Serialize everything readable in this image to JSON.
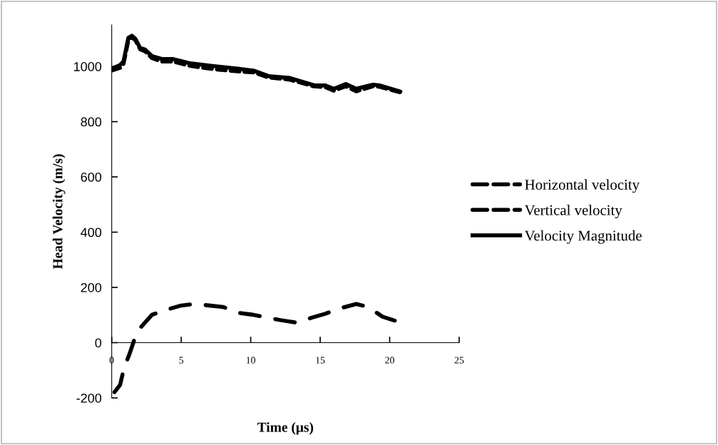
{
  "chart_data": {
    "type": "line",
    "xlabel": "Time (μs)",
    "ylabel": "Head Velocity (m/s)",
    "xlim": [
      0,
      25
    ],
    "xticks": [
      0,
      5,
      10,
      15,
      20,
      25
    ],
    "ylim": [
      -200,
      1150
    ],
    "yticks": [
      -200,
      0,
      200,
      400,
      600,
      800,
      1000
    ],
    "grid": false,
    "legend": "right",
    "marker": "none",
    "series": [
      {
        "name": "Horizontal velocity",
        "color": "#000000",
        "line_style": "dotted",
        "x": [
          0,
          0.6,
          0.85,
          1.2,
          1.45,
          1.7,
          2.05,
          2.4,
          2.9,
          3.6,
          4.36,
          5.64,
          7.35,
          9.06,
          10.26,
          11.28,
          12.82,
          14.53,
          15.38,
          15.98,
          16.84,
          17.6,
          18.8,
          19.3,
          20.77
        ],
        "values": [
          985,
          995,
          1010,
          1095,
          1105,
          1095,
          1062,
          1055,
          1030,
          1018,
          1018,
          1002,
          990,
          982,
          978,
          960,
          952,
          928,
          925,
          912,
          928,
          910,
          928,
          926,
          906
        ]
      },
      {
        "name": "Vertical velocity",
        "color": "#000000",
        "line_style": "dashed",
        "x": [
          0.2,
          0.6,
          0.9,
          1.28,
          1.62,
          2.13,
          2.9,
          3.85,
          4.96,
          5.98,
          8.03,
          9.22,
          10.17,
          11.28,
          12.22,
          13.33,
          14.36,
          15.38,
          16.41,
          17.6,
          18.46,
          19.49,
          20.43
        ],
        "values": [
          -179,
          -153,
          -89,
          -41,
          10,
          58,
          101,
          118,
          134,
          140,
          129,
          107,
          101,
          90,
          81,
          72,
          90,
          105,
          124,
          140,
          129,
          94,
          79
        ]
      },
      {
        "name": "Velocity Magnitude",
        "color": "#000000",
        "line_style": "solid",
        "x": [
          0,
          0.6,
          0.85,
          1.2,
          1.45,
          1.7,
          2.05,
          2.4,
          2.9,
          3.6,
          4.36,
          5.64,
          7.35,
          9.06,
          10.26,
          11.28,
          12.82,
          14.53,
          15.38,
          15.98,
          16.84,
          17.6,
          18.8,
          19.3,
          20.77
        ],
        "values": [
          992,
          1005,
          1018,
          1104,
          1111,
          1100,
          1066,
          1061,
          1037,
          1027,
          1027,
          1011,
          1001,
          992,
          984,
          965,
          958,
          932,
          931,
          919,
          936,
          919,
          934,
          931,
          909
        ]
      }
    ]
  }
}
